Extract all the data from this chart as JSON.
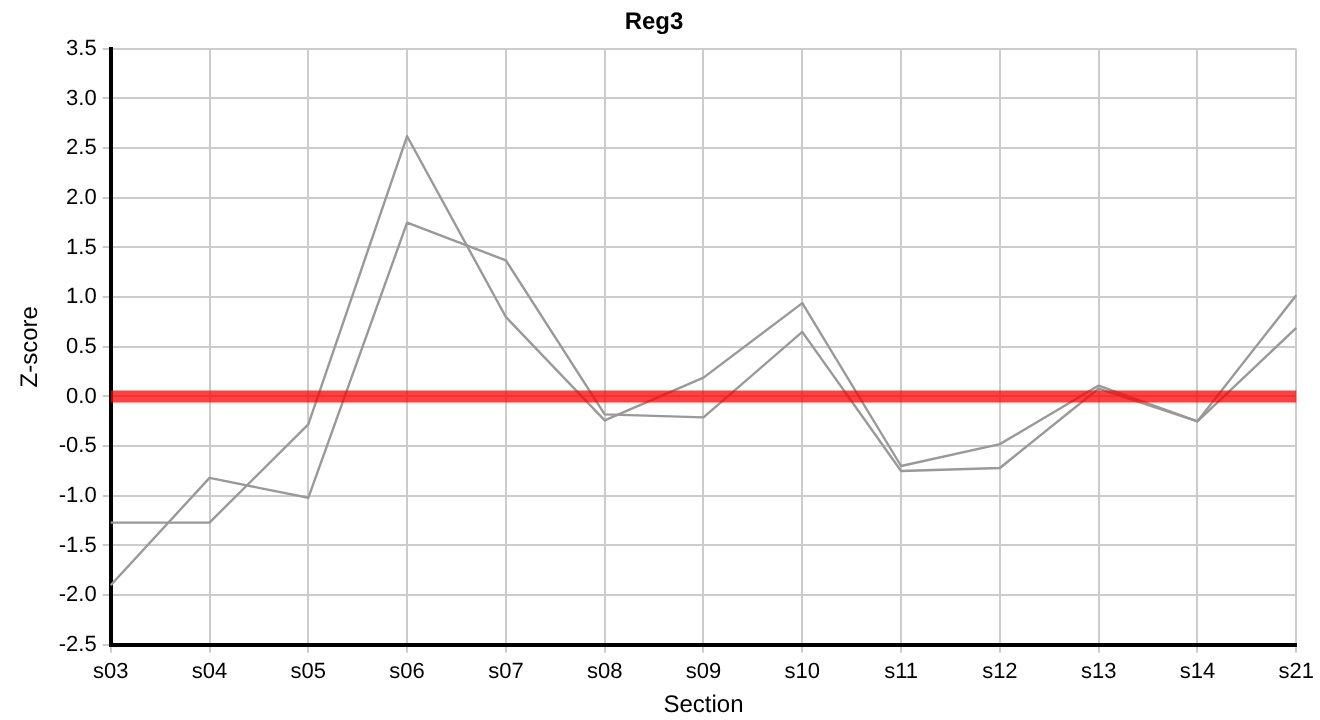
{
  "chart_data": {
    "type": "line",
    "title": "Reg3",
    "xlabel": "Section",
    "ylabel": "Z-score",
    "categories": [
      "s03",
      "s04",
      "s05",
      "s06",
      "s07",
      "s08",
      "s09",
      "s10",
      "s11",
      "s12",
      "s13",
      "s14",
      "s21"
    ],
    "series": [
      {
        "color": "#999999",
        "values": [
          -1.9,
          -0.82,
          -1.02,
          1.75,
          1.37,
          -0.18,
          -0.21,
          0.65,
          -0.75,
          -0.72,
          0.08,
          -0.25,
          0.69
        ]
      },
      {
        "color": "#999999",
        "values": [
          -1.27,
          -1.27,
          -0.28,
          2.62,
          0.8,
          -0.24,
          0.19,
          0.94,
          -0.7,
          -0.48,
          0.11,
          -0.25,
          1.02
        ]
      }
    ],
    "ylim": [
      -2.5,
      3.5
    ],
    "yticks": [
      {
        "value": -2.5,
        "label": "-2.5"
      },
      {
        "value": -2,
        "label": "-2.0"
      },
      {
        "value": -1.5,
        "label": "-1.5"
      },
      {
        "value": -1,
        "label": "-1.0"
      },
      {
        "value": -0.5,
        "label": "-0.5"
      },
      {
        "value": 0,
        "label": "0.0"
      },
      {
        "value": 0.5,
        "label": "0.5"
      },
      {
        "value": 1,
        "label": "1.0"
      },
      {
        "value": 1.5,
        "label": "1.5"
      },
      {
        "value": 2,
        "label": "2.0"
      },
      {
        "value": 2.5,
        "label": "2.5"
      },
      {
        "value": 3,
        "label": "3.0"
      },
      {
        "value": 3.5,
        "label": "3.5"
      }
    ],
    "ref_lines": [
      {
        "axis": "y",
        "value": 0,
        "color": "#ff0000"
      }
    ],
    "grid": true,
    "legend": false,
    "marker": "none",
    "line_style": "solid"
  }
}
